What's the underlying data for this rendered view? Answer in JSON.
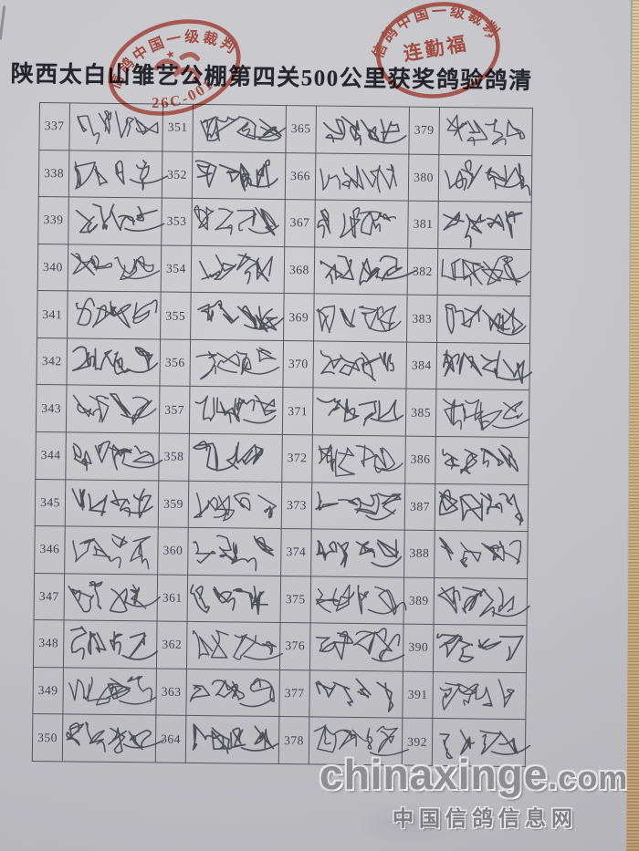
{
  "page": {
    "title": "陕西太白山雏艺公棚第四关500公里获奖鸽验鸽清"
  },
  "stamps": {
    "left": {
      "ring_text": "信鸽中国一级裁判",
      "star": "★",
      "code": "26C-001"
    },
    "right": {
      "ring_text": "信鸽中国一级裁判",
      "name": "连勤福"
    }
  },
  "table": {
    "signature_text": "成绩有效",
    "columns": [
      {
        "numbers": [
          337,
          338,
          339,
          340,
          341,
          342,
          343,
          344,
          345,
          346,
          347,
          348,
          349,
          350
        ]
      },
      {
        "numbers": [
          351,
          352,
          353,
          354,
          355,
          356,
          357,
          358,
          359,
          360,
          361,
          362,
          363,
          364
        ]
      },
      {
        "numbers": [
          365,
          366,
          367,
          368,
          369,
          370,
          371,
          372,
          373,
          374,
          375,
          376,
          377,
          378
        ]
      },
      {
        "numbers": [
          379,
          380,
          381,
          382,
          383,
          384,
          385,
          386,
          387,
          388,
          389,
          390,
          391,
          392
        ]
      }
    ]
  },
  "watermark": {
    "site": "chinaxinge",
    "domain_suffix": ".com",
    "caption": "中国信鸽信息网"
  },
  "colors": {
    "stamp_red": "#bf3b2c",
    "ink": "#41414a",
    "paper": "#c9c9cd",
    "table_line": "#55555c"
  }
}
